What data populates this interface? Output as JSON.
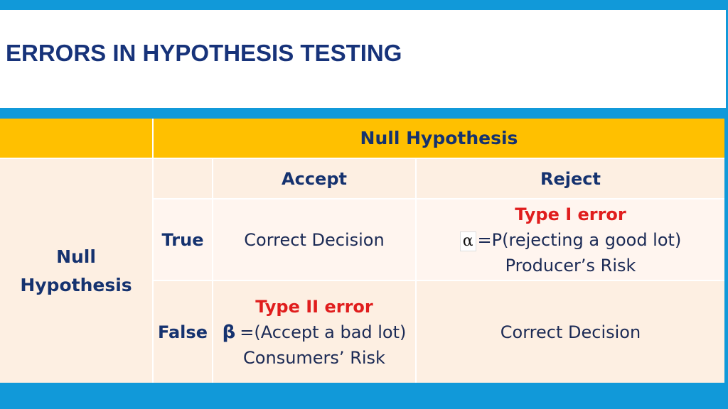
{
  "slide": {
    "title": "ERRORS IN HYPOTHESIS TESTING"
  },
  "table": {
    "top_header": "Null Hypothesis",
    "col_accept": "Accept",
    "col_reject": "Reject",
    "row_header": "Null Hypothesis",
    "row_true": "True",
    "row_false": "False",
    "true_accept": "Correct Decision",
    "true_reject": {
      "label": "Type I error",
      "symbol": "α",
      "definition": "=P(rejecting a good lot)",
      "risk": "Producer’s Risk"
    },
    "false_accept": {
      "label": "Type II error",
      "symbol": "β",
      "definition": "=(Accept a bad lot)",
      "risk": "Consumers’ Risk"
    },
    "false_reject": "Correct Decision"
  },
  "colors": {
    "background": "#1199d9",
    "header_fill": "#ffc000",
    "title_text": "#17337a",
    "error_text": "#e01d1d"
  }
}
